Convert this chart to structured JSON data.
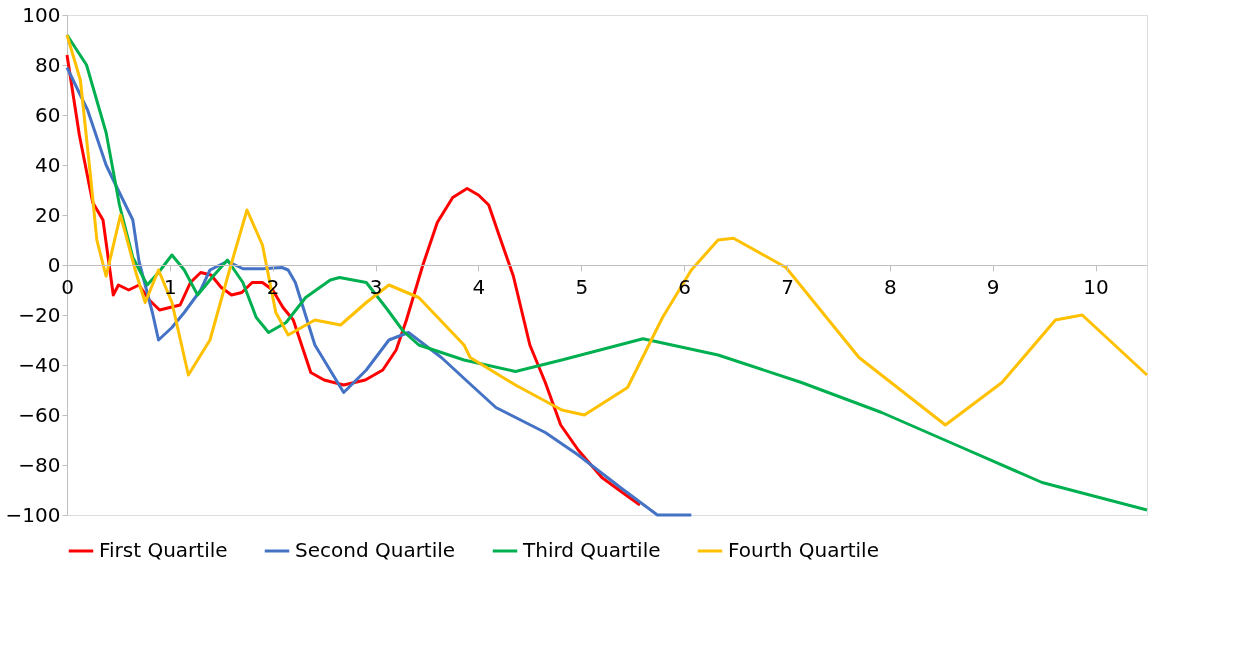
{
  "chart_data": {
    "type": "line",
    "xlim": [
      0,
      10.5
    ],
    "xticks": [
      0,
      1,
      2,
      3,
      4,
      5,
      6,
      7,
      8,
      9,
      10
    ],
    "ylim": [
      -100,
      100
    ],
    "yticks": [
      -100,
      -80,
      -60,
      -40,
      -20,
      0,
      20,
      40,
      60,
      80,
      100
    ],
    "grid": false,
    "legend": "bottom",
    "marker": "none",
    "line_style": "solid",
    "series": [
      {
        "name": "First Quartile",
        "color": "#ff0000",
        "x": [
          0,
          0.12,
          0.25,
          0.35,
          0.45,
          0.5,
          0.6,
          0.7,
          0.8,
          0.9,
          1.0,
          1.1,
          1.2,
          1.3,
          1.4,
          1.5,
          1.6,
          1.7,
          1.8,
          1.9,
          2.0,
          2.1,
          2.2,
          2.37,
          2.5,
          2.69,
          2.9,
          3.07,
          3.2,
          3.3,
          3.46,
          3.6,
          3.75,
          3.89,
          4.0,
          4.1,
          4.2,
          4.34,
          4.5,
          4.65,
          4.8,
          4.97,
          5.2,
          5.4,
          5.57
        ],
        "values": [
          84,
          52,
          25,
          18,
          -12,
          -8,
          -10,
          -8,
          -14,
          -18,
          -17,
          -16,
          -7,
          -3,
          -4,
          -9,
          -12,
          -11,
          -7,
          -7,
          -10,
          -17,
          -22,
          -43,
          -46,
          -48,
          -46,
          -42,
          -34,
          -22,
          0,
          17,
          27,
          30.6,
          28,
          24,
          12,
          -4.5,
          -32,
          -47,
          -64,
          -74,
          -85,
          -91,
          -96
        ]
      },
      {
        "name": "Second Quartile",
        "color": "#4472c4",
        "x": [
          0,
          0.2,
          0.38,
          0.45,
          0.64,
          0.7,
          0.83,
          0.89,
          1.02,
          1.14,
          1.3,
          1.39,
          1.56,
          1.71,
          1.9,
          2.09,
          2.15,
          2.22,
          2.41,
          2.69,
          2.91,
          3.13,
          3.32,
          3.64,
          3.93,
          4.17,
          4.65,
          4.97,
          5.38,
          5.74,
          6.07
        ],
        "values": [
          79,
          62,
          40,
          34,
          18,
          1.5,
          -19,
          -30,
          -25,
          -19,
          -10,
          -2,
          1.5,
          -1.5,
          -1.5,
          -1,
          -2,
          -7,
          -32,
          -51,
          -42,
          -30,
          -27,
          -37,
          -48,
          -57,
          -67,
          -76,
          -89,
          -100,
          -100
        ]
      },
      {
        "name": "Third Quartile",
        "color": "#00b050",
        "x": [
          0,
          0.19,
          0.38,
          0.51,
          0.64,
          0.78,
          0.89,
          1.02,
          1.14,
          1.27,
          1.42,
          1.56,
          1.71,
          1.84,
          1.96,
          2.13,
          2.32,
          2.56,
          2.65,
          2.91,
          3.1,
          3.27,
          3.42,
          3.86,
          4.36,
          4.81,
          5.6,
          6.33,
          7.14,
          7.92,
          8.7,
          9.48,
          10.5
        ],
        "values": [
          92,
          80,
          53,
          24,
          3,
          -8,
          -3,
          4,
          -2,
          -12,
          -4.5,
          2,
          -7,
          -21,
          -27,
          -23,
          -13,
          -6,
          -5,
          -7,
          -17,
          -26.5,
          -32,
          -38,
          -42.6,
          -38,
          -29.5,
          -36,
          -47,
          -59,
          -73,
          -87,
          -98
        ]
      },
      {
        "name": "Fourth Quartile",
        "color": "#ffc000",
        "x": [
          0,
          0.13,
          0.23,
          0.29,
          0.38,
          0.52,
          0.67,
          0.76,
          0.89,
          1.02,
          1.18,
          1.39,
          1.58,
          1.75,
          1.9,
          2.03,
          2.15,
          2.41,
          2.66,
          2.91,
          3.13,
          3.42,
          3.86,
          3.92,
          4.36,
          4.81,
          5.03,
          5.45,
          5.79,
          6.07,
          6.33,
          6.48,
          6.99,
          7.7,
          8.54,
          9.09,
          9.61,
          9.87,
          10.5
        ],
        "values": [
          92,
          74,
          35,
          10,
          -4.5,
          20,
          -3,
          -15,
          -2,
          -15,
          -44,
          -30,
          -2,
          22,
          8,
          -19,
          -28,
          -22,
          -24,
          -15,
          -8,
          -13,
          -32,
          -37,
          -48,
          -58,
          -60,
          -49,
          -21,
          -2,
          10,
          10.7,
          -1,
          -37,
          -64,
          -47,
          -22,
          -20,
          -44
        ]
      }
    ]
  }
}
